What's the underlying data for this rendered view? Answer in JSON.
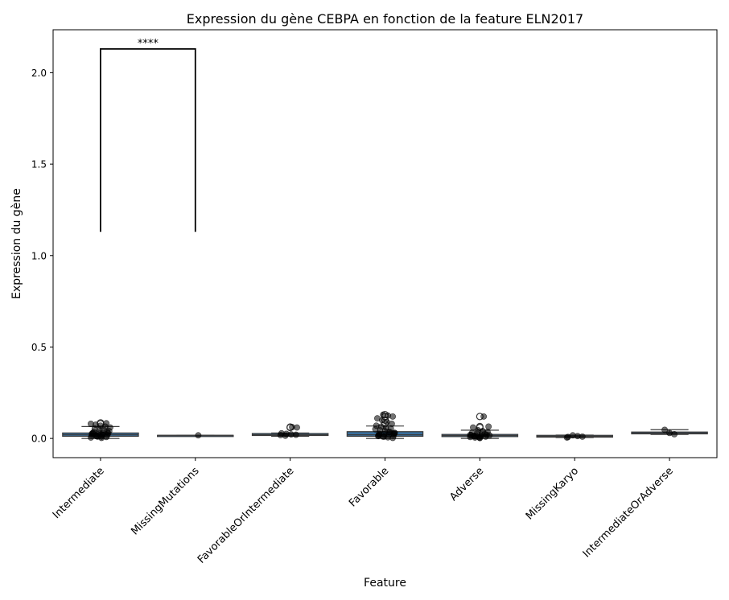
{
  "chart_data": {
    "type": "box",
    "title": "Expression du gène CEBPA en fonction de la feature ELN2017",
    "xlabel": "Feature",
    "ylabel": "Expression du gène",
    "ylim": [
      -0.105,
      2.235
    ],
    "yticks": [
      "0.0",
      "0.5",
      "1.0",
      "1.5",
      "2.0"
    ],
    "ytick_values": [
      0.0,
      0.5,
      1.0,
      1.5,
      2.0
    ],
    "grid": false,
    "legend": "none",
    "box_color": "#3a6f9c",
    "categories": [
      "Intermediate",
      "MissingMutations",
      "FavorableOrIntermediate",
      "Favorable",
      "Adverse",
      "MissingKaryo",
      "IntermediateOrAdverse"
    ],
    "boxes": [
      {
        "category": "Intermediate",
        "whisker_low": 0.0,
        "q1": 0.012,
        "median": 0.02,
        "q3": 0.03,
        "whisker_high": 0.065,
        "outliers": [
          0.08,
          0.085
        ]
      },
      {
        "category": "MissingMutations",
        "whisker_low": 0.017,
        "q1": 0.017,
        "median": 0.017,
        "q3": 0.017,
        "whisker_high": 0.017,
        "outliers": []
      },
      {
        "category": "FavorableOrIntermediate",
        "whisker_low": 0.012,
        "q1": 0.016,
        "median": 0.02,
        "q3": 0.027,
        "whisker_high": 0.03,
        "outliers": [
          0.06,
          0.062
        ]
      },
      {
        "category": "Favorable",
        "whisker_low": 0.0,
        "q1": 0.012,
        "median": 0.02,
        "q3": 0.037,
        "whisker_high": 0.068,
        "outliers": [
          0.08,
          0.1,
          0.12,
          0.13
        ]
      },
      {
        "category": "Adverse",
        "whisker_low": 0.0,
        "q1": 0.01,
        "median": 0.016,
        "q3": 0.022,
        "whisker_high": 0.045,
        "outliers": [
          0.06,
          0.065,
          0.12
        ]
      },
      {
        "category": "MissingKaryo",
        "whisker_low": 0.005,
        "q1": 0.007,
        "median": 0.012,
        "q3": 0.017,
        "whisker_high": 0.018,
        "outliers": []
      },
      {
        "category": "IntermediateOrAdverse",
        "whisker_low": 0.022,
        "q1": 0.025,
        "median": 0.03,
        "q3": 0.035,
        "whisker_high": 0.048,
        "outliers": []
      }
    ],
    "points": [
      {
        "category": "Intermediate",
        "values": [
          0.005,
          0.008,
          0.01,
          0.012,
          0.015,
          0.018,
          0.02,
          0.022,
          0.025,
          0.028,
          0.03,
          0.032,
          0.035,
          0.04,
          0.045,
          0.05,
          0.055,
          0.06,
          0.065,
          0.07,
          0.075,
          0.08,
          0.083,
          0.003,
          0.015,
          0.025,
          0.035,
          0.02,
          0.01,
          0.03
        ]
      },
      {
        "category": "MissingMutations",
        "values": [
          0.017
        ]
      },
      {
        "category": "FavorableOrIntermediate",
        "values": [
          0.015,
          0.018,
          0.02,
          0.022,
          0.025,
          0.028,
          0.06,
          0.062
        ]
      },
      {
        "category": "Favorable",
        "values": [
          0.003,
          0.006,
          0.01,
          0.013,
          0.016,
          0.02,
          0.023,
          0.026,
          0.03,
          0.035,
          0.04,
          0.045,
          0.05,
          0.055,
          0.06,
          0.065,
          0.07,
          0.08,
          0.09,
          0.1,
          0.11,
          0.12,
          0.125,
          0.13,
          0.015,
          0.025,
          0.035,
          0.01,
          0.02,
          0.03
        ]
      },
      {
        "category": "Adverse",
        "values": [
          0.002,
          0.005,
          0.008,
          0.01,
          0.012,
          0.015,
          0.018,
          0.02,
          0.022,
          0.025,
          0.03,
          0.035,
          0.04,
          0.045,
          0.06,
          0.065,
          0.12,
          0.007,
          0.014,
          0.017,
          0.024,
          0.004,
          0.011,
          0.019
        ]
      },
      {
        "category": "MissingKaryo",
        "values": [
          0.005,
          0.01,
          0.013,
          0.017,
          0.008
        ]
      },
      {
        "category": "IntermediateOrAdverse",
        "values": [
          0.023,
          0.03,
          0.047
        ]
      }
    ],
    "annotations": [
      {
        "text": "****",
        "from": "Intermediate",
        "to": "MissingMutations",
        "y_low": 1.13,
        "y_high": 2.13
      }
    ]
  }
}
